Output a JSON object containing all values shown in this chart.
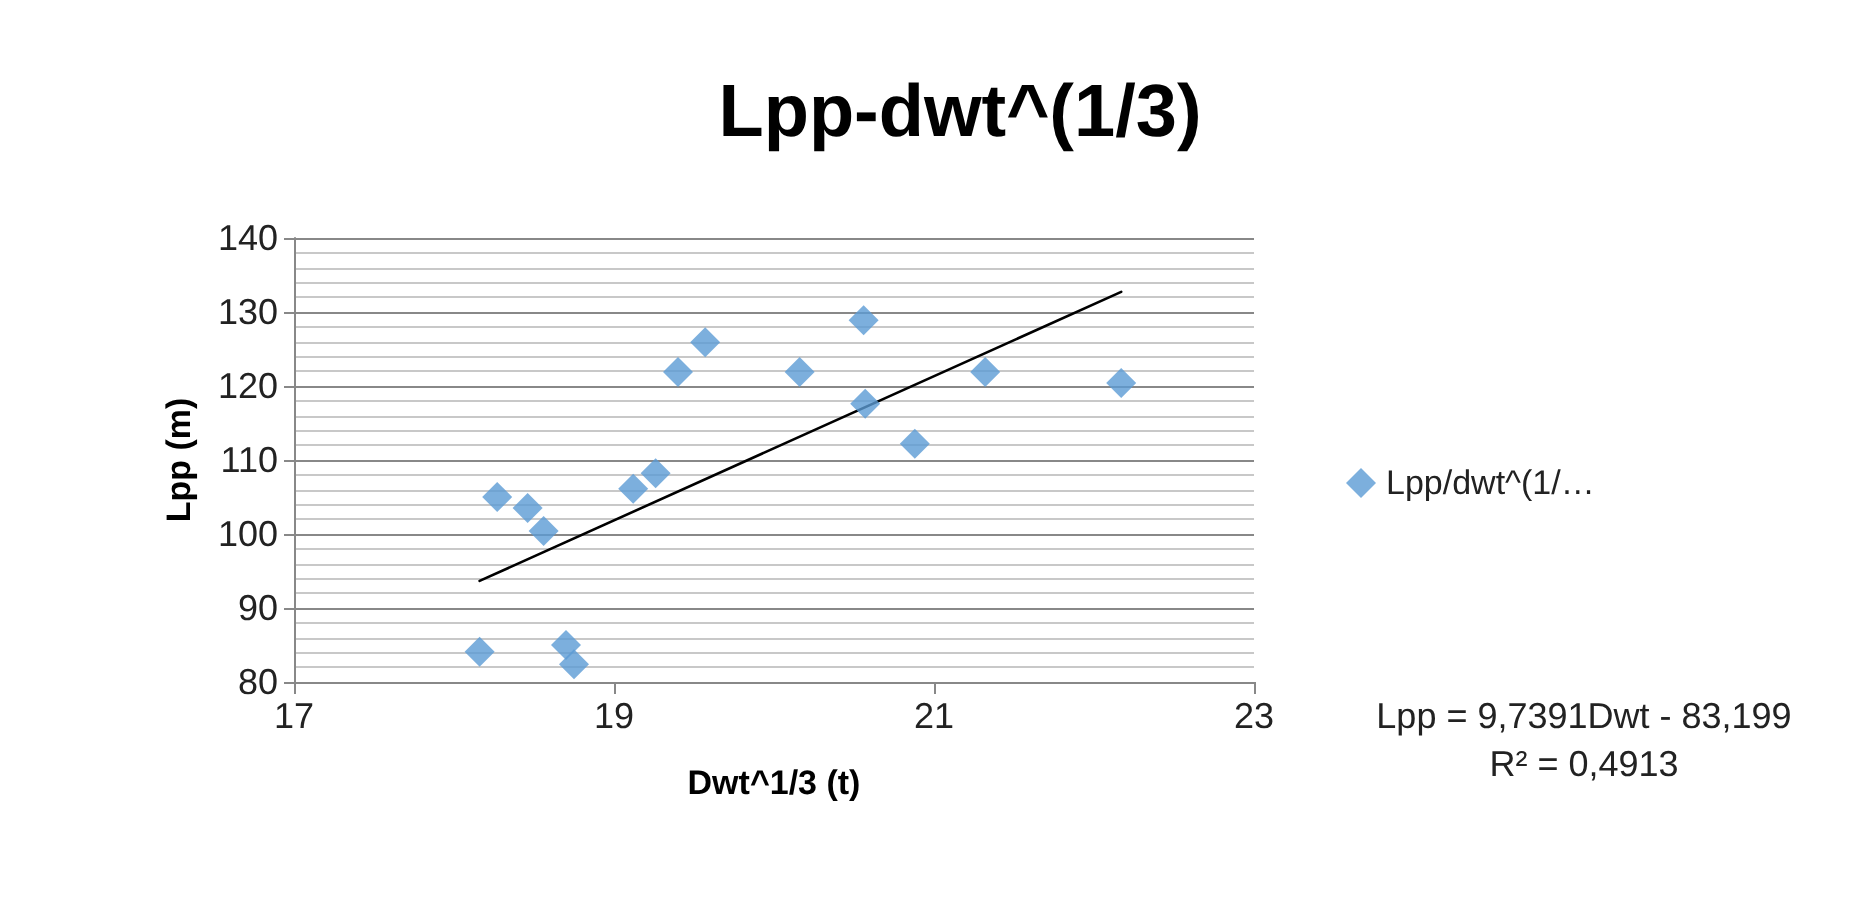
{
  "chart_data": {
    "type": "scatter",
    "title": "Lpp-dwt^(1/3)",
    "xlabel": "Dwt^1/3 (t)",
    "ylabel": "Lpp (m)",
    "series": [
      {
        "name": "Lpp/dwt^(1/…",
        "color": "#5b9bd5",
        "marker": "diamond",
        "x": [
          18.16,
          18.27,
          18.46,
          18.56,
          18.7,
          18.75,
          19.12,
          19.26,
          19.4,
          19.57,
          20.16,
          20.56,
          20.57,
          20.88,
          21.32,
          22.17
        ],
        "values": [
          84.1,
          105.0,
          103.5,
          100.4,
          85.0,
          82.4,
          106.1,
          108.2,
          121.9,
          125.9,
          121.9,
          128.9,
          117.6,
          112.2,
          121.9,
          120.4
        ]
      },
      {
        "type": "line",
        "color": "#000000",
        "marker": "none",
        "line_style": "solid",
        "x": [
          18.16,
          22.17
        ],
        "values": [
          93.66,
          132.72
        ]
      }
    ],
    "xlim": [
      17,
      23
    ],
    "xticks": [
      17,
      19,
      21,
      23
    ],
    "ylim": [
      80,
      140
    ],
    "yticks": [
      80,
      90,
      100,
      110,
      120,
      130,
      140
    ],
    "grid": "y",
    "legend": "right",
    "annotations": [
      "Lpp = 9,7391Dwt - 83,199",
      "R² = 0,4913"
    ]
  }
}
